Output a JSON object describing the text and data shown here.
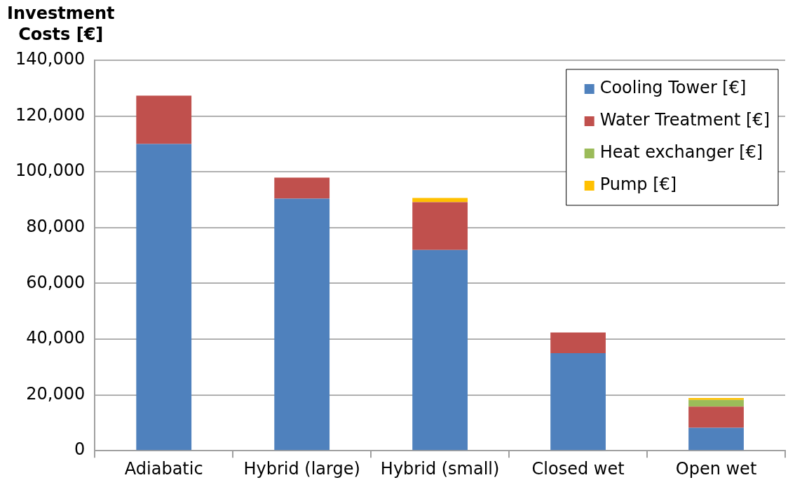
{
  "chart_data": {
    "type": "bar",
    "stacked": true,
    "ylabel": "Investment\nCosts [€]",
    "categories": [
      "Adiabatic",
      "Hybrid (large)",
      "Hybrid (small)",
      "Closed wet",
      "Open wet"
    ],
    "series": [
      {
        "name": "Cooling Tower [€]",
        "color": "#4f81bd",
        "values": [
          110000,
          90400,
          72000,
          35000,
          8200
        ]
      },
      {
        "name": "Water Treatment [€]",
        "color": "#c0504d",
        "values": [
          17300,
          7500,
          17100,
          7400,
          7600
        ]
      },
      {
        "name": "Heat exchanger [€]",
        "color": "#9bbb59",
        "values": [
          0,
          0,
          0,
          0,
          2400
        ]
      },
      {
        "name": "Pump [€]",
        "color": "#ffc000",
        "values": [
          0,
          0,
          1500,
          0,
          700
        ]
      }
    ],
    "ylim": [
      0,
      140000
    ],
    "yticks": [
      {
        "value": 0,
        "label": "0"
      },
      {
        "value": 20000,
        "label": "20,000"
      },
      {
        "value": 40000,
        "label": "40,000"
      },
      {
        "value": 60000,
        "label": "60,000"
      },
      {
        "value": 80000,
        "label": "80,000"
      },
      {
        "value": 100000,
        "label": "100,000"
      },
      {
        "value": 120000,
        "label": "120,000"
      },
      {
        "value": 140000,
        "label": "140,000"
      }
    ],
    "grid": "y",
    "legend": "top right"
  }
}
